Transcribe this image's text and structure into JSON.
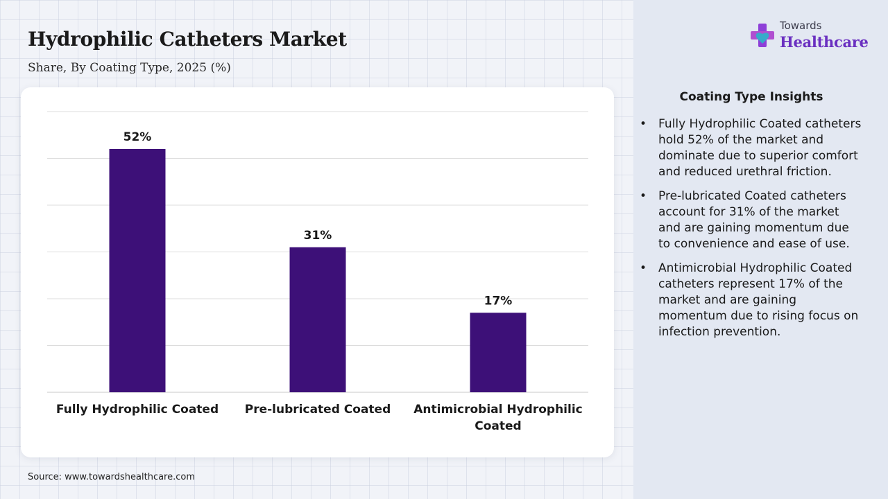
{
  "title": "Hydrophilic Catheters Market",
  "subtitle": "Share, By Coating Type, 2025 (%)",
  "source": "Source: www.towardshealthcare.com",
  "logo": {
    "line1": "Towards",
    "line2": "Healthcare",
    "icon": "cross-heart-icon"
  },
  "colors": {
    "bar": "#3d1078",
    "accent": "#6a2fc0",
    "grid": "#dcdcdc"
  },
  "insights": {
    "title": "Coating Type Insights",
    "bullet": "•",
    "items": [
      "Fully Hydrophilic Coated catheters hold 52% of the market and dominate due to superior comfort and reduced urethral friction.",
      "Pre-lubricated Coated catheters account for 31% of the market and are gaining momentum due to convenience and ease of use.",
      "Antimicrobial Hydrophilic Coated catheters represent 17% of the market and are gaining momentum due to rising focus on infection prevention."
    ]
  },
  "chart_data": {
    "type": "bar",
    "categories": [
      "Fully Hydrophilic Coated",
      "Pre-lubricated Coated",
      "Antimicrobial Hydrophilic Coated"
    ],
    "values": [
      52,
      31,
      17
    ],
    "value_labels": [
      "52%",
      "31%",
      "17%"
    ],
    "title": "Hydrophilic Catheters Market",
    "subtitle": "Share, By Coating Type, 2025 (%)",
    "ylim": [
      0,
      60
    ],
    "grid": true,
    "legend": "none"
  }
}
